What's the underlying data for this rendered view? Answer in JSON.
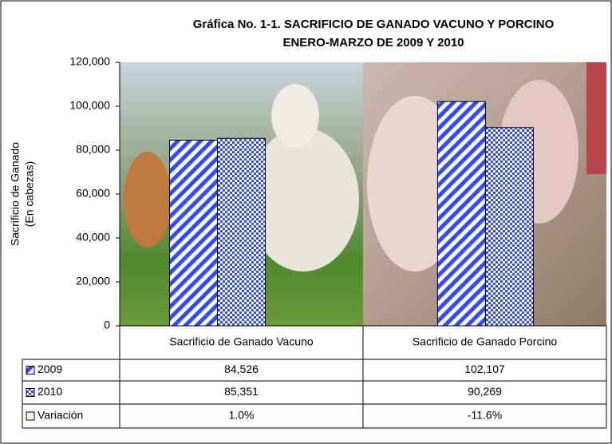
{
  "chart_data": {
    "type": "bar",
    "title": "Gráfica No. 1-1.  SACRIFICIO DE GANADO VACUNO Y PORCINO",
    "subtitle": "ENERO-MARZO DE 2009 Y 2010",
    "ylabel": [
      "Sacrificio de Ganado",
      "(En cabezas)"
    ],
    "categories": [
      "Sacrificio de Ganado Vacuno",
      "Sacrificio de Ganado Porcino"
    ],
    "series": [
      {
        "name": "2009",
        "color": "#2f4bff",
        "pattern": "diagonal",
        "values": [
          84526,
          102107
        ],
        "value_labels": [
          "84,526",
          "102,107"
        ]
      },
      {
        "name": "2010",
        "color": "#2f4bff",
        "pattern": "checker",
        "values": [
          85351,
          90269
        ],
        "value_labels": [
          "85,351",
          "90,269"
        ]
      },
      {
        "name": "Variación",
        "color": "#ffffcc",
        "pattern": "none",
        "values": [
          1.0,
          -11.6
        ],
        "value_labels": [
          "1.0%",
          "-11.6%"
        ]
      }
    ],
    "ylim": [
      0,
      120000
    ],
    "yticks": [
      0,
      {
        "value": 20000,
        "label": "20,000"
      },
      {
        "value": 40000,
        "label": "40,000"
      },
      {
        "value": 60000,
        "label": "60,000"
      },
      {
        "value": 80000,
        "label": "80,000"
      },
      {
        "value": 100000,
        "label": "100,000"
      },
      {
        "value": 120000,
        "label": "120,000"
      }
    ]
  }
}
